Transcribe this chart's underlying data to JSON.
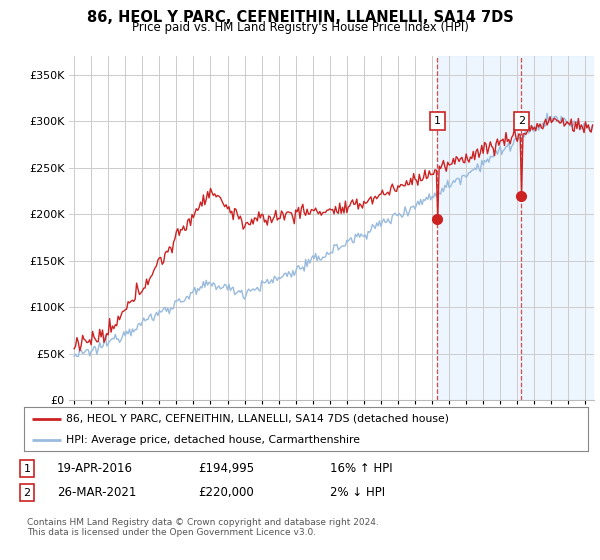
{
  "title": "86, HEOL Y PARC, CEFNEITHIN, LLANELLI, SA14 7DS",
  "subtitle": "Price paid vs. HM Land Registry's House Price Index (HPI)",
  "ylim": [
    0,
    370000
  ],
  "xlim_start": 1994.7,
  "xlim_end": 2025.5,
  "legend_line1": "86, HEOL Y PARC, CEFNEITHIN, LLANELLI, SA14 7DS (detached house)",
  "legend_line2": "HPI: Average price, detached house, Carmarthenshire",
  "transaction1_date": 2016.3,
  "transaction1_label": "1",
  "transaction1_price": 194995,
  "transaction1_text": "19-APR-2016",
  "transaction1_amount": "£194,995",
  "transaction1_hpi": "16% ↑ HPI",
  "transaction2_date": 2021.23,
  "transaction2_label": "2",
  "transaction2_price": 220000,
  "transaction2_text": "26-MAR-2021",
  "transaction2_amount": "£220,000",
  "transaction2_hpi": "2% ↓ HPI",
  "footer": "Contains HM Land Registry data © Crown copyright and database right 2024.\nThis data is licensed under the Open Government Licence v3.0.",
  "red_color": "#cc2222",
  "blue_color": "#99bbdd",
  "fill_color": "#ddeeff",
  "background_color": "#ffffff",
  "grid_color": "#cccccc",
  "shade_color": "#ddeeff"
}
